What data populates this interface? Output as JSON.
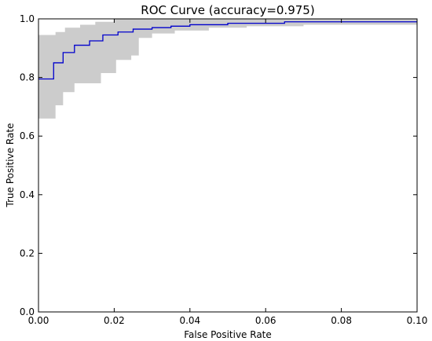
{
  "chart_data": {
    "type": "line",
    "title": "ROC Curve (accuracy=0.975)",
    "xlabel": "False Positive Rate",
    "ylabel": "True Positive Rate",
    "xlim": [
      0.0,
      0.1
    ],
    "ylim": [
      0.0,
      1.0
    ],
    "xticks": [
      "0.00",
      "0.02",
      "0.04",
      "0.06",
      "0.08",
      "0.10"
    ],
    "yticks": [
      "0.0",
      "0.2",
      "0.4",
      "0.6",
      "0.8",
      "1.0"
    ],
    "grid": false,
    "legend": null,
    "colors": {
      "line": "#0000cc",
      "band": "#cccccc",
      "axes": "#000000"
    },
    "series": [
      {
        "values": [
          [
            0.0,
            0.795
          ],
          [
            0.004,
            0.795
          ],
          [
            0.004,
            0.85
          ],
          [
            0.0065,
            0.85
          ],
          [
            0.0065,
            0.885
          ],
          [
            0.0095,
            0.885
          ],
          [
            0.0095,
            0.91
          ],
          [
            0.0135,
            0.91
          ],
          [
            0.0135,
            0.925
          ],
          [
            0.017,
            0.925
          ],
          [
            0.017,
            0.945
          ],
          [
            0.021,
            0.945
          ],
          [
            0.021,
            0.955
          ],
          [
            0.025,
            0.955
          ],
          [
            0.025,
            0.965
          ],
          [
            0.03,
            0.965
          ],
          [
            0.03,
            0.97
          ],
          [
            0.035,
            0.97
          ],
          [
            0.035,
            0.975
          ],
          [
            0.04,
            0.975
          ],
          [
            0.04,
            0.98
          ],
          [
            0.05,
            0.98
          ],
          [
            0.05,
            0.985
          ],
          [
            0.065,
            0.985
          ],
          [
            0.065,
            0.99
          ],
          [
            0.1,
            0.99
          ]
        ]
      }
    ],
    "band": {
      "upper": [
        [
          0.0,
          0.945
        ],
        [
          0.0045,
          0.945
        ],
        [
          0.0045,
          0.955
        ],
        [
          0.007,
          0.955
        ],
        [
          0.007,
          0.97
        ],
        [
          0.011,
          0.97
        ],
        [
          0.011,
          0.98
        ],
        [
          0.015,
          0.98
        ],
        [
          0.015,
          0.99
        ],
        [
          0.02,
          0.99
        ],
        [
          0.02,
          1.0
        ],
        [
          0.1,
          1.0
        ]
      ],
      "lower": [
        [
          0.0,
          0.66
        ],
        [
          0.0045,
          0.66
        ],
        [
          0.0045,
          0.705
        ],
        [
          0.0065,
          0.705
        ],
        [
          0.0065,
          0.75
        ],
        [
          0.0095,
          0.75
        ],
        [
          0.0095,
          0.78
        ],
        [
          0.0165,
          0.78
        ],
        [
          0.0165,
          0.815
        ],
        [
          0.0205,
          0.815
        ],
        [
          0.0205,
          0.86
        ],
        [
          0.0245,
          0.86
        ],
        [
          0.0245,
          0.875
        ],
        [
          0.0265,
          0.875
        ],
        [
          0.0265,
          0.935
        ],
        [
          0.03,
          0.935
        ],
        [
          0.03,
          0.95
        ],
        [
          0.036,
          0.95
        ],
        [
          0.036,
          0.96
        ],
        [
          0.045,
          0.96
        ],
        [
          0.045,
          0.97
        ],
        [
          0.055,
          0.97
        ],
        [
          0.055,
          0.975
        ],
        [
          0.07,
          0.975
        ],
        [
          0.07,
          0.98
        ],
        [
          0.1,
          0.98
        ]
      ]
    }
  }
}
